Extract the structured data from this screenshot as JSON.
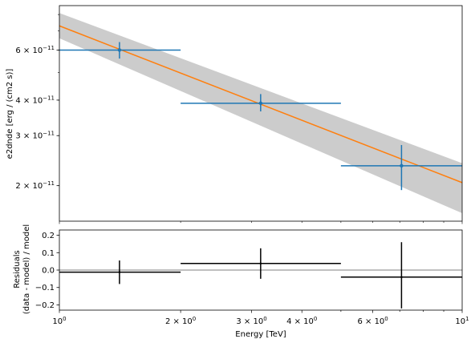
{
  "chart_data": [
    {
      "type": "scatter",
      "title": "",
      "xlabel": "",
      "ylabel": "e2dnde [erg / (cm2 s)]",
      "xscale": "log",
      "yscale": "log",
      "xlim": [
        1,
        10
      ],
      "ylim": [
        1.5e-11,
        8.6e-11
      ],
      "ytick_labels": [
        {
          "value": 2e-11,
          "mantissa": "2",
          "exp": "−11"
        },
        {
          "value": 3e-11,
          "mantissa": "3",
          "exp": "−11"
        },
        {
          "value": 4e-11,
          "mantissa": "4",
          "exp": "−11"
        },
        {
          "value": 6e-11,
          "mantissa": "6",
          "exp": "−11"
        }
      ],
      "model": {
        "color": "#ff7f0e",
        "x": [
          1,
          10
        ],
        "y": [
          7.3e-11,
          2.05e-11
        ],
        "band_lower": [
          6.6e-11,
          1.6e-11
        ],
        "band_upper": [
          8.1e-11,
          2.4e-11
        ],
        "band_color": "#cccccc"
      },
      "flux_points": {
        "color": "#1f77b4",
        "x": [
          1.41,
          3.16,
          7.07
        ],
        "y": [
          6e-11,
          3.9e-11,
          2.35e-11
        ],
        "x_min": [
          1,
          2,
          5
        ],
        "x_max": [
          2,
          5,
          10
        ],
        "y_lower": [
          5.6e-11,
          3.65e-11,
          1.93e-11
        ],
        "y_upper": [
          6.4e-11,
          4.2e-11,
          2.78e-11
        ]
      }
    },
    {
      "type": "scatter",
      "title": "",
      "xlabel": "Energy [TeV]",
      "ylabel_lines": [
        "Residuals",
        "(data - model) / model"
      ],
      "xscale": "log",
      "xlim": [
        1,
        10
      ],
      "ylim": [
        -0.23,
        0.23
      ],
      "ytick_labels": [
        {
          "value": -0.2,
          "label": "−0.2"
        },
        {
          "value": -0.1,
          "label": "−0.1"
        },
        {
          "value": 0.0,
          "label": "0.0"
        },
        {
          "value": 0.1,
          "label": "0.1"
        },
        {
          "value": 0.2,
          "label": "0.2"
        }
      ],
      "xtick_labels": [
        {
          "value": 1,
          "mantissa": "10",
          "exp": "0"
        },
        {
          "value": 2,
          "mantissa": "2 × 10",
          "exp": "0"
        },
        {
          "value": 3,
          "mantissa": "3 × 10",
          "exp": "0"
        },
        {
          "value": 4,
          "mantissa": "4 × 10",
          "exp": "0"
        },
        {
          "value": 6,
          "mantissa": "6 × 10",
          "exp": "0"
        },
        {
          "value": 10,
          "mantissa": "10",
          "exp": "1"
        }
      ],
      "zero_line": 0,
      "residuals": {
        "color": "#000000",
        "x": [
          1.41,
          3.16,
          7.07
        ],
        "y": [
          -0.012,
          0.038,
          -0.04
        ],
        "x_min": [
          1,
          2,
          5
        ],
        "x_max": [
          2,
          5,
          10
        ],
        "y_lower": [
          -0.08,
          -0.05,
          -0.22
        ],
        "y_upper": [
          0.055,
          0.125,
          0.16
        ]
      }
    }
  ]
}
